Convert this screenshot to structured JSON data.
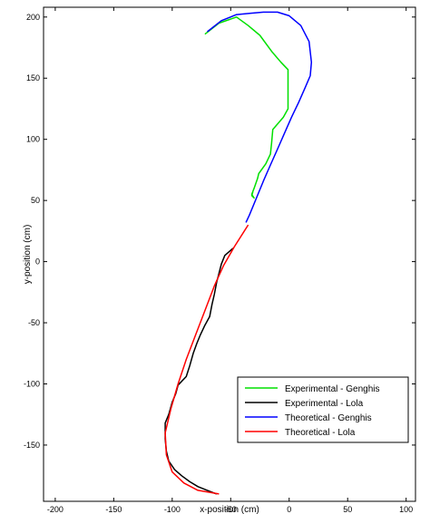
{
  "chart_data": {
    "type": "line",
    "xlabel": "x-position (cm)",
    "ylabel": "y-position (cm)",
    "xlim": [
      -210,
      108
    ],
    "ylim": [
      -196,
      208
    ],
    "xticks": [
      -200,
      -150,
      -100,
      -50,
      0,
      50,
      100
    ],
    "yticks": [
      -150,
      -100,
      -50,
      0,
      50,
      100,
      150,
      200
    ],
    "xtick_labels": [
      "-200",
      "-150",
      "-100",
      "-50",
      "0",
      "50",
      "100"
    ],
    "ytick_labels": [
      "-150",
      "-100",
      "-50",
      "0",
      "50",
      "100",
      "150",
      "200"
    ],
    "grid": false,
    "legend_position": "bottom-right",
    "series": [
      {
        "name": "Experimental - Genghis",
        "color": "#00e000",
        "points": [
          [
            -72,
            186
          ],
          [
            -60,
            195
          ],
          [
            -45,
            200
          ],
          [
            -35,
            193
          ],
          [
            -25,
            185
          ],
          [
            -15,
            172
          ],
          [
            -7,
            163
          ],
          [
            -1,
            157
          ],
          [
            -1,
            140
          ],
          [
            -1,
            125
          ],
          [
            -5,
            118
          ],
          [
            -14,
            108
          ],
          [
            -15,
            97
          ],
          [
            -16,
            88
          ],
          [
            -20,
            80
          ],
          [
            -26,
            72
          ],
          [
            -27,
            68
          ],
          [
            -30,
            60
          ],
          [
            -32,
            55
          ],
          [
            -30,
            52
          ],
          [
            -32,
            54
          ],
          [
            -31,
            57
          ]
        ]
      },
      {
        "name": "Experimental - Lola",
        "color": "#000000",
        "points": [
          [
            -48,
            11
          ],
          [
            -55,
            5
          ],
          [
            -58,
            -2
          ],
          [
            -62,
            -17
          ],
          [
            -64,
            -27
          ],
          [
            -66,
            -35
          ],
          [
            -68,
            -45
          ],
          [
            -72,
            -52
          ],
          [
            -76,
            -60
          ],
          [
            -79,
            -67
          ],
          [
            -82,
            -75
          ],
          [
            -85,
            -85
          ],
          [
            -88,
            -94
          ],
          [
            -92,
            -98
          ],
          [
            -95,
            -101
          ],
          [
            -97,
            -108
          ],
          [
            -100,
            -115
          ],
          [
            -103,
            -125
          ],
          [
            -106,
            -132
          ],
          [
            -106,
            -145
          ],
          [
            -105,
            -155
          ],
          [
            -103,
            -163
          ],
          [
            -98,
            -170
          ],
          [
            -92,
            -175
          ],
          [
            -85,
            -180
          ],
          [
            -78,
            -184
          ],
          [
            -70,
            -187
          ],
          [
            -62,
            -190
          ]
        ]
      },
      {
        "name": "Theoretical - Genghis",
        "color": "#0000ff",
        "points": [
          [
            -70,
            188
          ],
          [
            -58,
            197
          ],
          [
            -45,
            202
          ],
          [
            -34,
            203
          ],
          [
            -22,
            204
          ],
          [
            -10,
            204
          ],
          [
            0,
            201
          ],
          [
            10,
            193
          ],
          [
            17,
            180
          ],
          [
            19,
            163
          ],
          [
            18,
            152
          ],
          [
            14,
            143
          ],
          [
            8,
            130
          ],
          [
            2,
            118
          ],
          [
            -4,
            105
          ],
          [
            -10,
            92
          ],
          [
            -16,
            79
          ],
          [
            -22,
            66
          ],
          [
            -28,
            52
          ],
          [
            -34,
            38
          ],
          [
            -37,
            32
          ]
        ]
      },
      {
        "name": "Theoretical - Lola",
        "color": "#ff0000",
        "points": [
          [
            -35,
            30
          ],
          [
            -47,
            12
          ],
          [
            -56,
            -3
          ],
          [
            -64,
            -20
          ],
          [
            -72,
            -40
          ],
          [
            -80,
            -60
          ],
          [
            -88,
            -80
          ],
          [
            -95,
            -100
          ],
          [
            -101,
            -120
          ],
          [
            -106,
            -140
          ],
          [
            -105,
            -158
          ],
          [
            -100,
            -172
          ],
          [
            -90,
            -181
          ],
          [
            -78,
            -187
          ],
          [
            -60,
            -190
          ]
        ]
      }
    ]
  }
}
